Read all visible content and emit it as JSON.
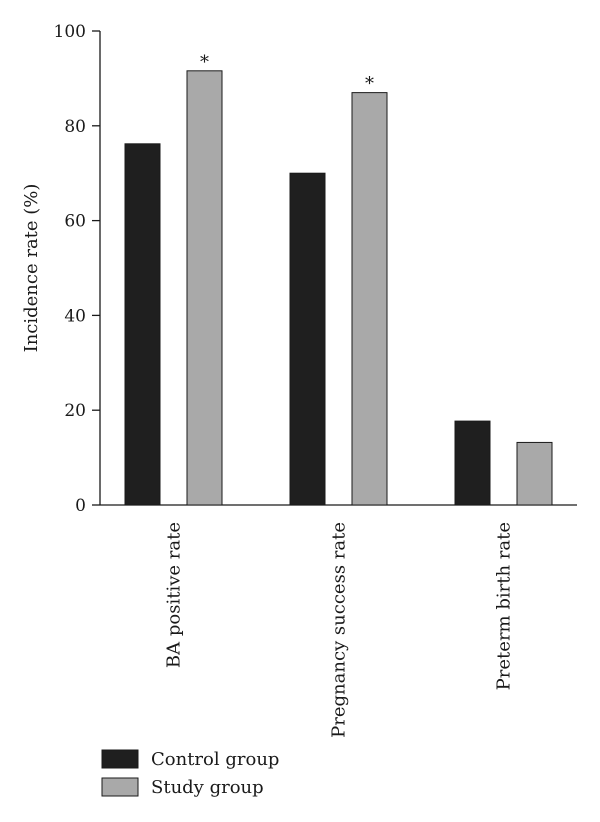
{
  "chart_data": {
    "type": "bar",
    "ylabel": "Incidence rate (%)",
    "ylim": [
      0,
      100
    ],
    "yticks": [
      0,
      20,
      40,
      60,
      80,
      100
    ],
    "categories": [
      "BA positive rate",
      "Pregnancy success rate",
      "Preterm birth rate"
    ],
    "series": [
      {
        "name": "Control group",
        "color": "#1f1f1f",
        "values": [
          76.2,
          70.0,
          17.7
        ]
      },
      {
        "name": "Study group",
        "color": "#a9a9a9",
        "values": [
          91.6,
          87.0,
          13.2
        ]
      }
    ],
    "annotations": [
      {
        "series": 1,
        "category": 0,
        "text": "*"
      },
      {
        "series": 1,
        "category": 1,
        "text": "*"
      }
    ],
    "grid": false,
    "legend": "bottom-left"
  }
}
